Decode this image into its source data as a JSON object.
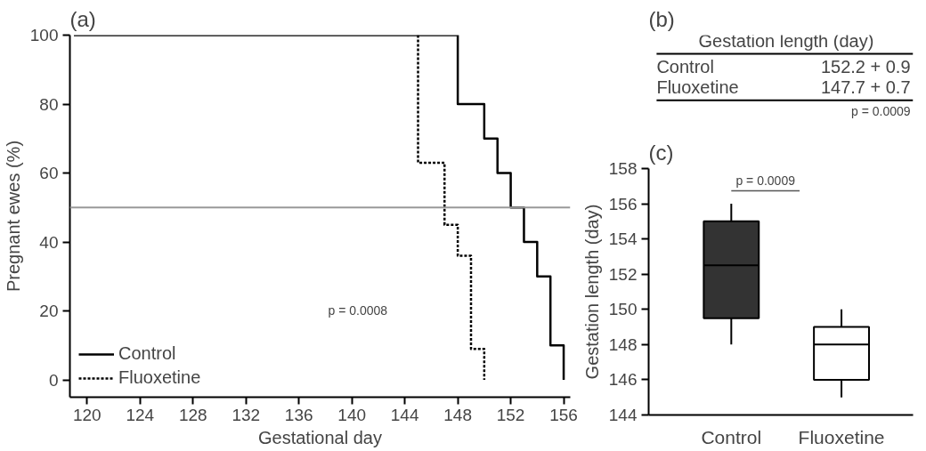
{
  "chart_data": [
    {
      "type": "step",
      "title": "(a)",
      "xlabel": "Gestational day",
      "ylabel": "Pregnant ewes (%)",
      "xlim": [
        118.7,
        156.5
      ],
      "ylim": [
        -5,
        100
      ],
      "xticks": [
        120,
        124,
        128,
        132,
        136,
        140,
        144,
        148,
        152,
        156
      ],
      "yticks": [
        0,
        20,
        40,
        60,
        80,
        100
      ],
      "legend": "bottom left",
      "grid": false,
      "series": [
        {
          "name": "Control",
          "color": "#000000",
          "line_style": "solid",
          "x": [
            119,
            148,
            150,
            151,
            152,
            153,
            154,
            155,
            156
          ],
          "values": [
            100,
            80,
            70,
            60,
            50,
            40,
            30,
            10,
            0
          ]
        },
        {
          "name": "Fluoxetine",
          "color": "#000000",
          "line_style": "dashed",
          "x": [
            145,
            145,
            147,
            148,
            149,
            150
          ],
          "values": [
            100,
            63,
            45,
            36,
            9,
            0
          ]
        }
      ],
      "ref_lines": [
        {
          "axis": "y",
          "value": 50,
          "color": "#999999"
        }
      ],
      "annotations": [
        "p = 0.0008"
      ]
    },
    {
      "type": "other",
      "title": "(b)",
      "annotations": [
        "Gestation length (day)",
        "Control",
        "152.2 + 0.9",
        "Fluoxetine",
        "147.7 + 0.7",
        "p = 0.0009"
      ]
    },
    {
      "type": "box",
      "title": "(c)",
      "ylabel": "Gestation length (day)",
      "categories": [
        "Control",
        "Fluoxetine"
      ],
      "ylim": [
        144,
        158
      ],
      "yticks": [
        144,
        146,
        148,
        150,
        152,
        154,
        156,
        158
      ],
      "grid": false,
      "colors": [
        "#333333",
        "#ffffff"
      ],
      "boxes": [
        {
          "low": 148,
          "q1": 149.5,
          "median": 152.5,
          "q3": 155,
          "high": 156
        },
        {
          "low": 145,
          "q1": 146,
          "median": 148,
          "q3": 149,
          "high": 150
        }
      ],
      "annotations": [
        "p = 0.0009"
      ]
    }
  ]
}
